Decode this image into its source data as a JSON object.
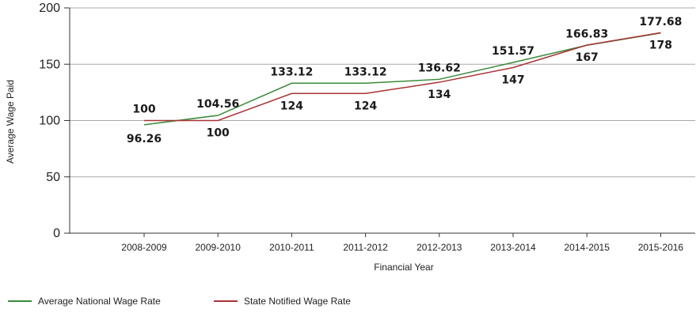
{
  "chart_data": {
    "type": "line",
    "title": "",
    "xlabel": "Financial Year",
    "ylabel": "Average Wage Paid",
    "categories": [
      "2008-2009",
      "2009-2010",
      "2010-2011",
      "2011-2012",
      "2012-2013",
      "2013-2014",
      "2014-2015",
      "2015-2016"
    ],
    "ylim": [
      0,
      200
    ],
    "yticks": [
      "0",
      "50",
      "100",
      "150",
      "200"
    ],
    "grid": true,
    "legend_position": "bottom-left",
    "series": [
      {
        "name": "Average National Wage Rate",
        "color": "#3a8a3a",
        "values": [
          96.26,
          104.56,
          133.12,
          133.12,
          136.62,
          151.57,
          166.83,
          177.68
        ],
        "labels": [
          "96.26",
          "104.56",
          "133.12",
          "133.12",
          "136.62",
          "151.57",
          "166.83",
          "177.68"
        ]
      },
      {
        "name": "State Notified Wage Rate",
        "color": "#a83232",
        "values": [
          100,
          100,
          124,
          124,
          134,
          147,
          167,
          178
        ],
        "labels": [
          "100",
          "100",
          "124",
          "124",
          "134",
          "147",
          "167",
          "178"
        ]
      }
    ]
  }
}
